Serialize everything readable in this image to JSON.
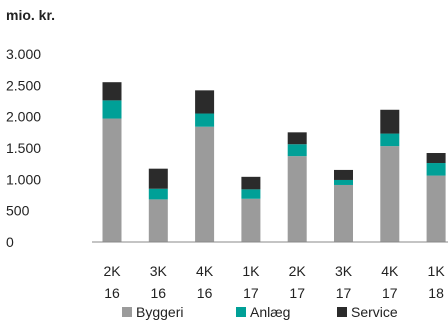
{
  "chart_data": {
    "type": "bar",
    "stacked": true,
    "unit_label": "mio. kr.",
    "categories": [
      [
        "2K",
        "16"
      ],
      [
        "3K",
        "16"
      ],
      [
        "4K",
        "16"
      ],
      [
        "1K",
        "17"
      ],
      [
        "2K",
        "17"
      ],
      [
        "3K",
        "17"
      ],
      [
        "4K",
        "17"
      ],
      [
        "1K",
        "18"
      ]
    ],
    "series": [
      {
        "name": "Byggeri",
        "color": "#9b9b9b",
        "values": [
          1970,
          680,
          1840,
          690,
          1370,
          910,
          1530,
          1060
        ]
      },
      {
        "name": "Anlæg",
        "color": "#00a097",
        "values": [
          290,
          170,
          210,
          150,
          190,
          80,
          200,
          200
        ]
      },
      {
        "name": "Service",
        "color": "#2b2b2b",
        "values": [
          290,
          320,
          370,
          200,
          190,
          160,
          380,
          160
        ]
      }
    ],
    "ylim": [
      0,
      3000
    ],
    "yticks": [
      0,
      500,
      1000,
      1500,
      2000,
      2500,
      3000
    ],
    "ytick_labels": [
      "0",
      "500",
      "1.000",
      "1.500",
      "2.000",
      "2.500",
      "3.000"
    ],
    "grid": false,
    "legend_position": "bottom"
  }
}
